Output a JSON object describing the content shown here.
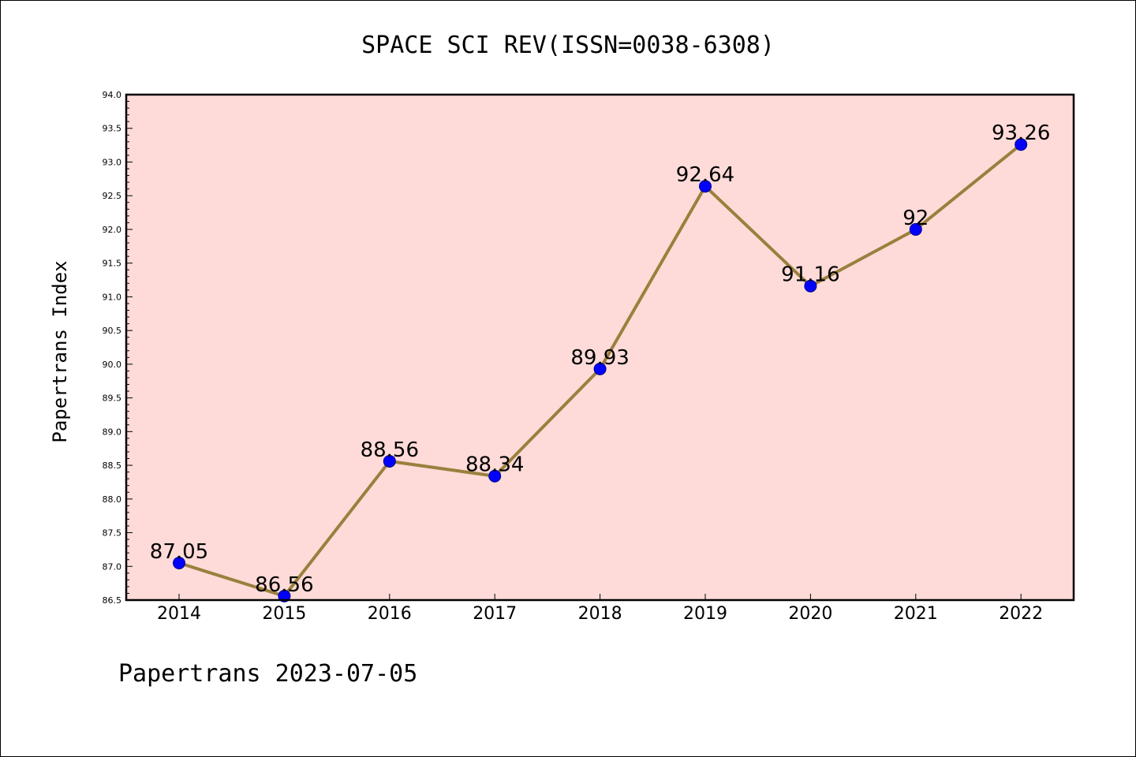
{
  "chart_data": {
    "type": "line",
    "title": "SPACE SCI REV(ISSN=0038-6308)",
    "ylabel": "Papertrans Index",
    "xlabel": "",
    "footer": "Papertrans 2023-07-05",
    "categories": [
      "2014",
      "2015",
      "2016",
      "2017",
      "2018",
      "2019",
      "2020",
      "2021",
      "2022"
    ],
    "series": [
      {
        "values": [
          87.05,
          86.56,
          88.56,
          88.34,
          89.93,
          92.64,
          91.16,
          92,
          93.26
        ],
        "labels": [
          "87.05",
          "86.56",
          "88.56",
          "88.34",
          "89.93",
          "92.64",
          "91.16",
          "92",
          "93.26"
        ]
      }
    ],
    "ylim": [
      86.5,
      94.0
    ],
    "yticks": [
      "86.5",
      "87.0",
      "87.5",
      "88.0",
      "88.5",
      "89.0",
      "89.5",
      "90.0",
      "90.5",
      "91.0",
      "91.5",
      "92.0",
      "92.5",
      "93.0",
      "93.5",
      "94.0"
    ],
    "grid": false,
    "colors": {
      "plot_background": "#fedbd8",
      "line": "#9b7f3d",
      "marker": "#0000ff",
      "marker_edge": "#00008b"
    }
  }
}
